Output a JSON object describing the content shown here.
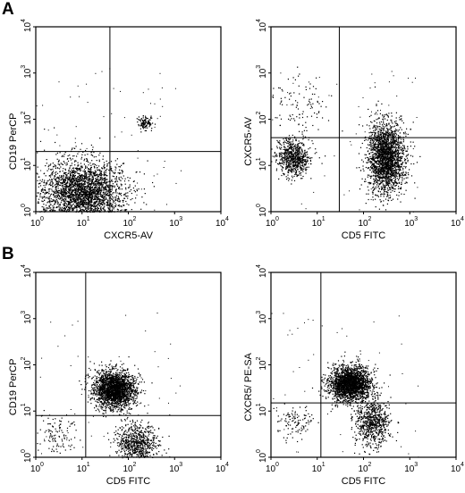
{
  "panel_labels": [
    "A",
    "B"
  ],
  "chart_data": [
    {
      "type": "scatter",
      "panel": "A",
      "xlabel": "CXCR5-AV",
      "ylabel": "CD19 PerCP",
      "x_scale": "log",
      "y_scale": "log",
      "xlim": [
        1,
        10000
      ],
      "ylim": [
        1,
        10000
      ],
      "x_ticks": [
        1,
        10,
        100,
        1000,
        10000
      ],
      "y_ticks": [
        1,
        10,
        100,
        1000,
        10000
      ],
      "tick_labels": [
        "10",
        "10",
        "10",
        "10",
        "10"
      ],
      "tick_exponents": [
        "0",
        "1",
        "2",
        "3",
        "4"
      ],
      "quadrant_gate": {
        "x": 40,
        "y": 20
      },
      "grid": false,
      "populations": [
        {
          "center_x": 12,
          "center_y": 2.5,
          "spread_x": 0.42,
          "spread_y": 0.35,
          "density": "high"
        },
        {
          "center_x": 5,
          "center_y": 3,
          "spread_x": 0.5,
          "spread_y": 0.4,
          "density": "medium"
        },
        {
          "center_x": 230,
          "center_y": 85,
          "spread_x": 0.08,
          "spread_y": 0.08,
          "density": "low"
        }
      ]
    },
    {
      "type": "scatter",
      "panel": "A",
      "xlabel": "CD5 FITC",
      "ylabel": "CXCR5-AV",
      "x_scale": "log",
      "y_scale": "log",
      "xlim": [
        1,
        10000
      ],
      "ylim": [
        1,
        10000
      ],
      "x_ticks": [
        1,
        10,
        100,
        1000,
        10000
      ],
      "y_ticks": [
        1,
        10,
        100,
        1000,
        10000
      ],
      "tick_labels": [
        "10",
        "10",
        "10",
        "10",
        "10"
      ],
      "tick_exponents": [
        "0",
        "1",
        "2",
        "3",
        "4"
      ],
      "quadrant_gate": {
        "x": 30,
        "y": 40
      },
      "grid": false,
      "populations": [
        {
          "center_x": 300,
          "center_y": 15,
          "spread_x": 0.2,
          "spread_y": 0.38,
          "density": "high"
        },
        {
          "center_x": 3,
          "center_y": 15,
          "spread_x": 0.18,
          "spread_y": 0.2,
          "density": "medium"
        },
        {
          "center_x": 4,
          "center_y": 200,
          "spread_x": 0.35,
          "spread_y": 0.35,
          "density": "low"
        }
      ]
    },
    {
      "type": "scatter",
      "panel": "B",
      "xlabel": "CD5 FITC",
      "ylabel": "CD19 PerCP",
      "x_scale": "log",
      "y_scale": "log",
      "xlim": [
        1,
        10000
      ],
      "ylim": [
        1,
        10000
      ],
      "x_ticks": [
        1,
        10,
        100,
        1000,
        10000
      ],
      "y_ticks": [
        1,
        10,
        100,
        1000,
        10000
      ],
      "tick_labels": [
        "10",
        "10",
        "10",
        "10",
        "10"
      ],
      "tick_exponents": [
        "0",
        "1",
        "2",
        "3",
        "4"
      ],
      "quadrant_gate": {
        "x": 12,
        "y": 8
      },
      "grid": false,
      "populations": [
        {
          "center_x": 50,
          "center_y": 30,
          "spread_x": 0.22,
          "spread_y": 0.2,
          "density": "high"
        },
        {
          "center_x": 150,
          "center_y": 2,
          "spread_x": 0.22,
          "spread_y": 0.22,
          "density": "medium"
        },
        {
          "center_x": 2.5,
          "center_y": 3,
          "spread_x": 0.25,
          "spread_y": 0.25,
          "density": "low"
        }
      ]
    },
    {
      "type": "scatter",
      "panel": "B",
      "xlabel": "CD5 FITC",
      "ylabel": "CXCR5/ PE-SA",
      "x_scale": "log",
      "y_scale": "log",
      "xlim": [
        1,
        10000
      ],
      "ylim": [
        1,
        10000
      ],
      "x_ticks": [
        1,
        10,
        100,
        1000,
        10000
      ],
      "y_ticks": [
        1,
        10,
        100,
        1000,
        10000
      ],
      "tick_labels": [
        "10",
        "10",
        "10",
        "10",
        "10"
      ],
      "tick_exponents": [
        "0",
        "1",
        "2",
        "3",
        "4"
      ],
      "quadrant_gate": {
        "x": 12,
        "y": 15
      },
      "grid": false,
      "populations": [
        {
          "center_x": 50,
          "center_y": 40,
          "spread_x": 0.22,
          "spread_y": 0.18,
          "density": "high"
        },
        {
          "center_x": 150,
          "center_y": 6,
          "spread_x": 0.2,
          "spread_y": 0.25,
          "density": "medium"
        },
        {
          "center_x": 3,
          "center_y": 6,
          "spread_x": 0.2,
          "spread_y": 0.2,
          "density": "low"
        }
      ]
    }
  ]
}
